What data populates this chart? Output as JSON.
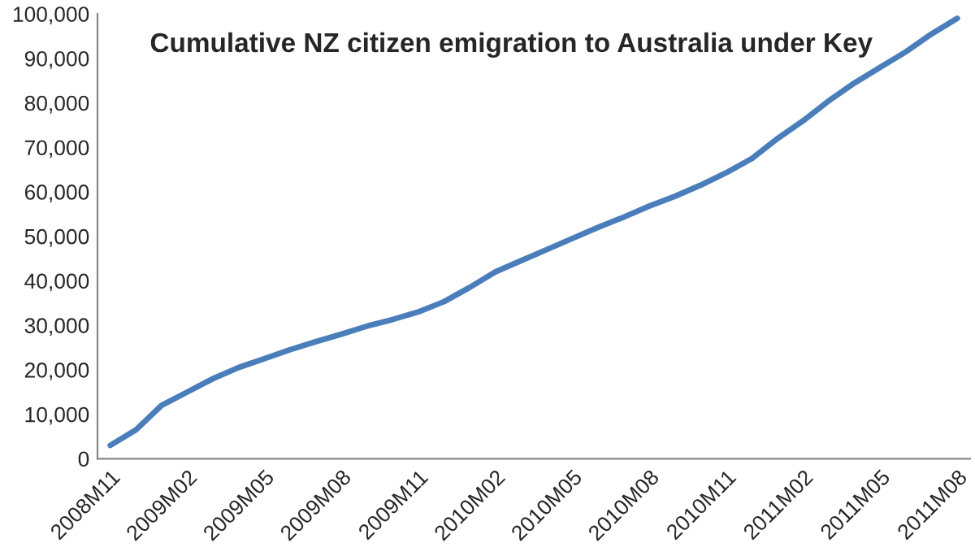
{
  "chart_data": {
    "type": "line",
    "title": "Cumulative NZ citizen emigration to Australia under Key",
    "categories": [
      "2008M11",
      null,
      null,
      "2009M02",
      null,
      null,
      "2009M05",
      null,
      null,
      "2009M08",
      null,
      null,
      "2009M11",
      null,
      null,
      "2010M02",
      null,
      null,
      "2010M05",
      null,
      null,
      "2010M08",
      null,
      null,
      "2010M11",
      null,
      null,
      "2011M02",
      null,
      null,
      "2011M05",
      null,
      null,
      "2011M08"
    ],
    "series": [
      {
        "color": "#4a7ebb",
        "values": [
          3000,
          6500,
          12000,
          15000,
          18000,
          20500,
          22500,
          24500,
          26300,
          28000,
          29800,
          31300,
          33000,
          35300,
          38500,
          42000,
          44500,
          47000,
          49500,
          52000,
          54300,
          56800,
          59000,
          61500,
          64300,
          67500,
          72000,
          76000,
          80500,
          84500,
          88000,
          91500,
          95500,
          99000
        ]
      }
    ],
    "ylim": [
      0,
      100000
    ],
    "yticks": [
      {
        "value": 0,
        "label": "0"
      },
      {
        "value": 10000,
        "label": "10,000"
      },
      {
        "value": 20000,
        "label": "20,000"
      },
      {
        "value": 30000,
        "label": "30,000"
      },
      {
        "value": 40000,
        "label": "40,000"
      },
      {
        "value": 50000,
        "label": "50,000"
      },
      {
        "value": 60000,
        "label": "60,000"
      },
      {
        "value": 70000,
        "label": "70,000"
      },
      {
        "value": 80000,
        "label": "80,000"
      },
      {
        "value": 90000,
        "label": "90,000"
      },
      {
        "value": 100000,
        "label": "100,000"
      }
    ],
    "grid": false,
    "legend": false,
    "marker": "none",
    "line_style": "solid"
  }
}
